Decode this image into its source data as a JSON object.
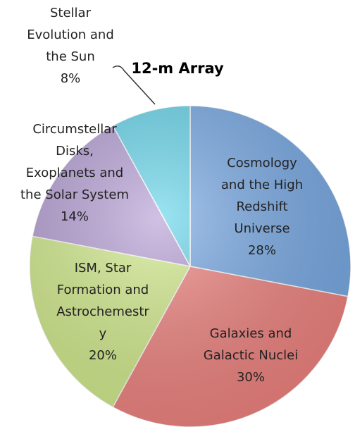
{
  "chart_data": {
    "type": "pie",
    "title": "12-m Array",
    "categories": [
      "Cosmology\nand the High\nRedshift\nUniverse",
      "Galaxies and\nGalactic Nuclei",
      "ISM, Star\nFormation and\nAstrochemestr\ny",
      "Circumstellar\nDisks,\nExoplanets and\nthe Solar System",
      "Stellar\nEvolution and\nthe Sun"
    ],
    "values": [
      28,
      30,
      20,
      14,
      8
    ],
    "value_labels": [
      "28%",
      "30%",
      "20%",
      "14%",
      "8%"
    ],
    "colors": [
      "#78aae6",
      "#f0837f",
      "#d3ec8c",
      "#b7a0d6",
      "#68d6ec"
    ]
  }
}
